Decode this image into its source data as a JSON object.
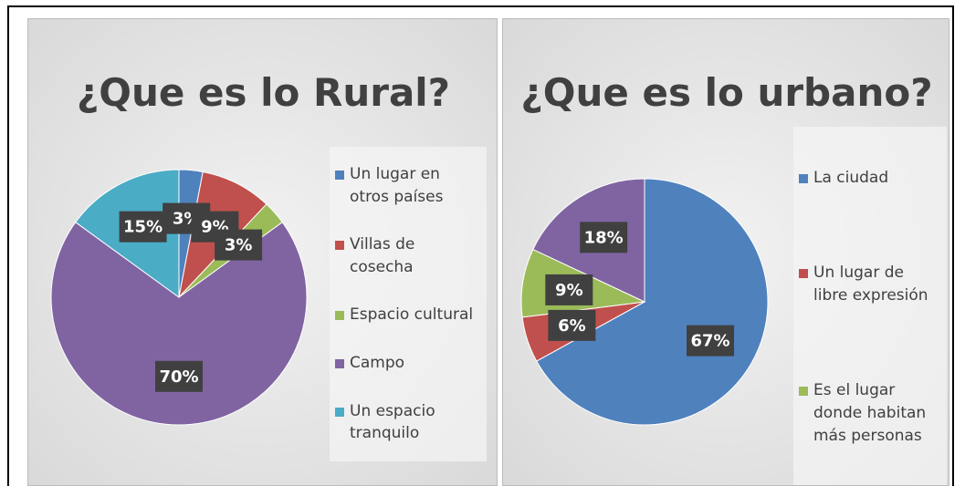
{
  "chart_data": [
    {
      "type": "pie",
      "title": "¿Que es lo Rural?",
      "categories": [
        "Un lugar en otros países",
        "Villas de cosecha",
        "Espacio cultural",
        "Campo",
        "Un espacio tranquilo"
      ],
      "values": [
        3,
        9,
        3,
        70,
        15
      ],
      "value_labels": [
        "3%",
        "9%",
        "3%",
        "70%",
        "15%"
      ],
      "colors": [
        "#4f81bd",
        "#c0504d",
        "#9bbb59",
        "#8064a2",
        "#4bacc6"
      ],
      "legend": "right"
    },
    {
      "type": "pie",
      "title": "¿Que es lo urbano?",
      "categories": [
        "La ciudad",
        "Un lugar de libre expresión",
        "Es el lugar donde habitan más personas",
        null
      ],
      "values": [
        67,
        6,
        9,
        18
      ],
      "value_labels": [
        "67%",
        "6%",
        "9%",
        "18%"
      ],
      "colors": [
        "#4f81bd",
        "#c0504d",
        "#9bbb59",
        "#8064a2"
      ],
      "legend": "right"
    }
  ]
}
